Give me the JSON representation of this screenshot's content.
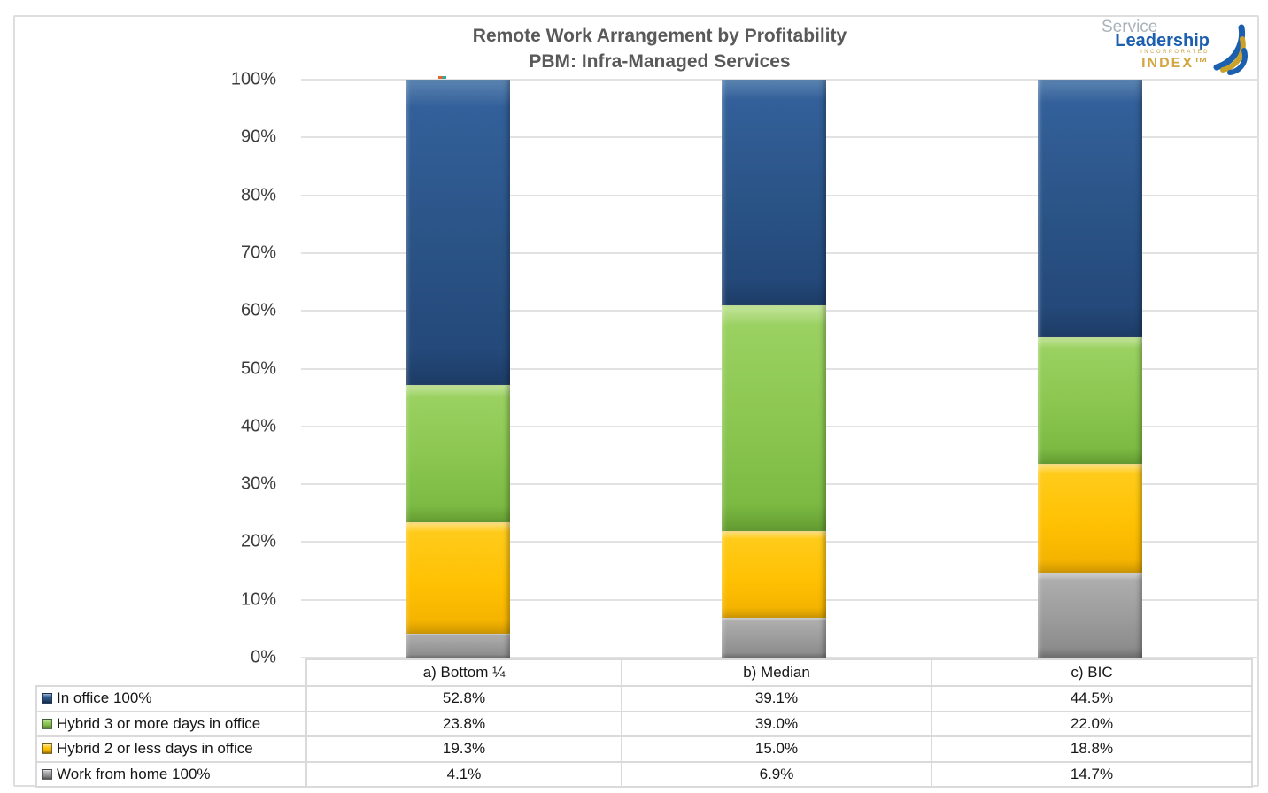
{
  "title": {
    "line1": "Remote Work Arrangement by Profitability",
    "line2": "PBM: Infra-Managed Services"
  },
  "logo": {
    "service": "Service",
    "leadership": "Leadership",
    "incorporated": "INCORPORATED",
    "index": "INDEX™",
    "colors": {
      "blue": "#1b5fae",
      "gold": "#c9a227",
      "gray": "#a9b2ba"
    }
  },
  "chart_data": {
    "type": "bar",
    "stacked": true,
    "title": "Remote Work Arrangement by Profitability — PBM: Infra-Managed Services",
    "categories": [
      "a) Bottom ¼",
      "b) Median",
      "c) BIC"
    ],
    "series": [
      {
        "name": "In office 100%",
        "key": "in-office",
        "color": "#2A5385",
        "values": [
          52.8,
          39.1,
          44.5
        ]
      },
      {
        "name": "Hybrid 3 or more days in office",
        "key": "hybrid-3",
        "color": "#8AC64F",
        "values": [
          23.8,
          39.0,
          22.0
        ]
      },
      {
        "name": "Hybrid 2 or less days in office",
        "key": "hybrid-2",
        "color": "#FFC103",
        "values": [
          19.3,
          15.0,
          18.8
        ]
      },
      {
        "name": "Work from home 100%",
        "key": "wfh",
        "color": "#9B9B9B",
        "values": [
          4.1,
          6.9,
          14.7
        ]
      }
    ],
    "xlabel": "",
    "ylabel": "",
    "ylim": [
      0,
      100
    ],
    "yticks": [
      "100%",
      "90%",
      "80%",
      "70%",
      "60%",
      "50%",
      "40%",
      "30%",
      "20%",
      "10%",
      "0%"
    ],
    "grid": true,
    "gridline_color": "#e2e2e2",
    "legend_position": "data-table-below-left",
    "value_format": "percent_1dp"
  },
  "table": {
    "columns": [
      "a) Bottom ¼",
      "b) Median",
      "c) BIC"
    ],
    "rows": [
      {
        "label": "In office 100%",
        "key": "in-office",
        "values": [
          "52.8%",
          "39.1%",
          "44.5%"
        ]
      },
      {
        "label": "Hybrid 3 or more days in office",
        "key": "hybrid-3",
        "values": [
          "23.8%",
          "39.0%",
          "22.0%"
        ]
      },
      {
        "label": "Hybrid 2 or less days in office",
        "key": "hybrid-2",
        "values": [
          "19.3%",
          "15.0%",
          "18.8%"
        ]
      },
      {
        "label": "Work from home 100%",
        "key": "wfh",
        "values": [
          "4.1%",
          "6.9%",
          "14.7%"
        ]
      }
    ]
  }
}
